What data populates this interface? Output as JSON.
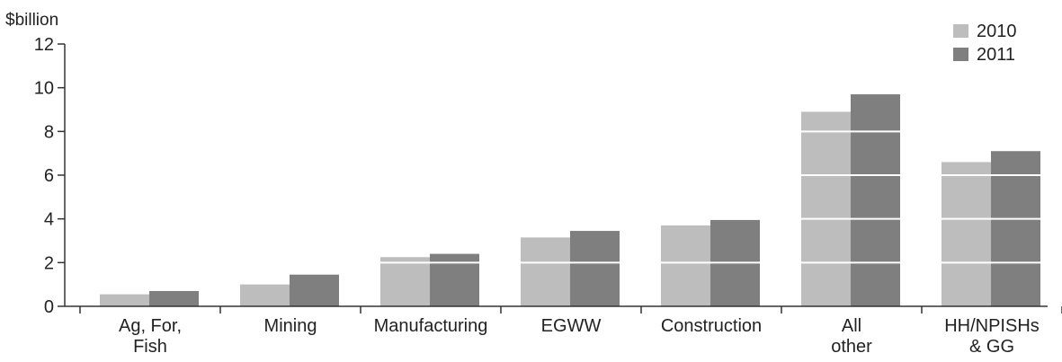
{
  "chart_data": {
    "type": "bar",
    "ylabel": "$billion",
    "ylim": [
      0,
      12
    ],
    "yticks": [
      0,
      2,
      4,
      6,
      8,
      10,
      12
    ],
    "grid": "white gridlines drawn over bars",
    "legend_position": "top-right",
    "categories": [
      [
        "Ag, For,",
        "Fish"
      ],
      [
        "Mining"
      ],
      [
        "Manufacturing"
      ],
      [
        "EGWW"
      ],
      [
        "Construction"
      ],
      [
        "All",
        "other"
      ],
      [
        "HH/NPISHs",
        "& GG"
      ]
    ],
    "series": [
      {
        "name": "2010",
        "color": "#bdbdbd",
        "values": [
          0.55,
          1.0,
          2.25,
          3.15,
          3.7,
          8.9,
          6.6
        ]
      },
      {
        "name": "2011",
        "color": "#7f7f7f",
        "values": [
          0.7,
          1.45,
          2.4,
          3.45,
          3.95,
          9.7,
          7.1
        ]
      }
    ]
  }
}
